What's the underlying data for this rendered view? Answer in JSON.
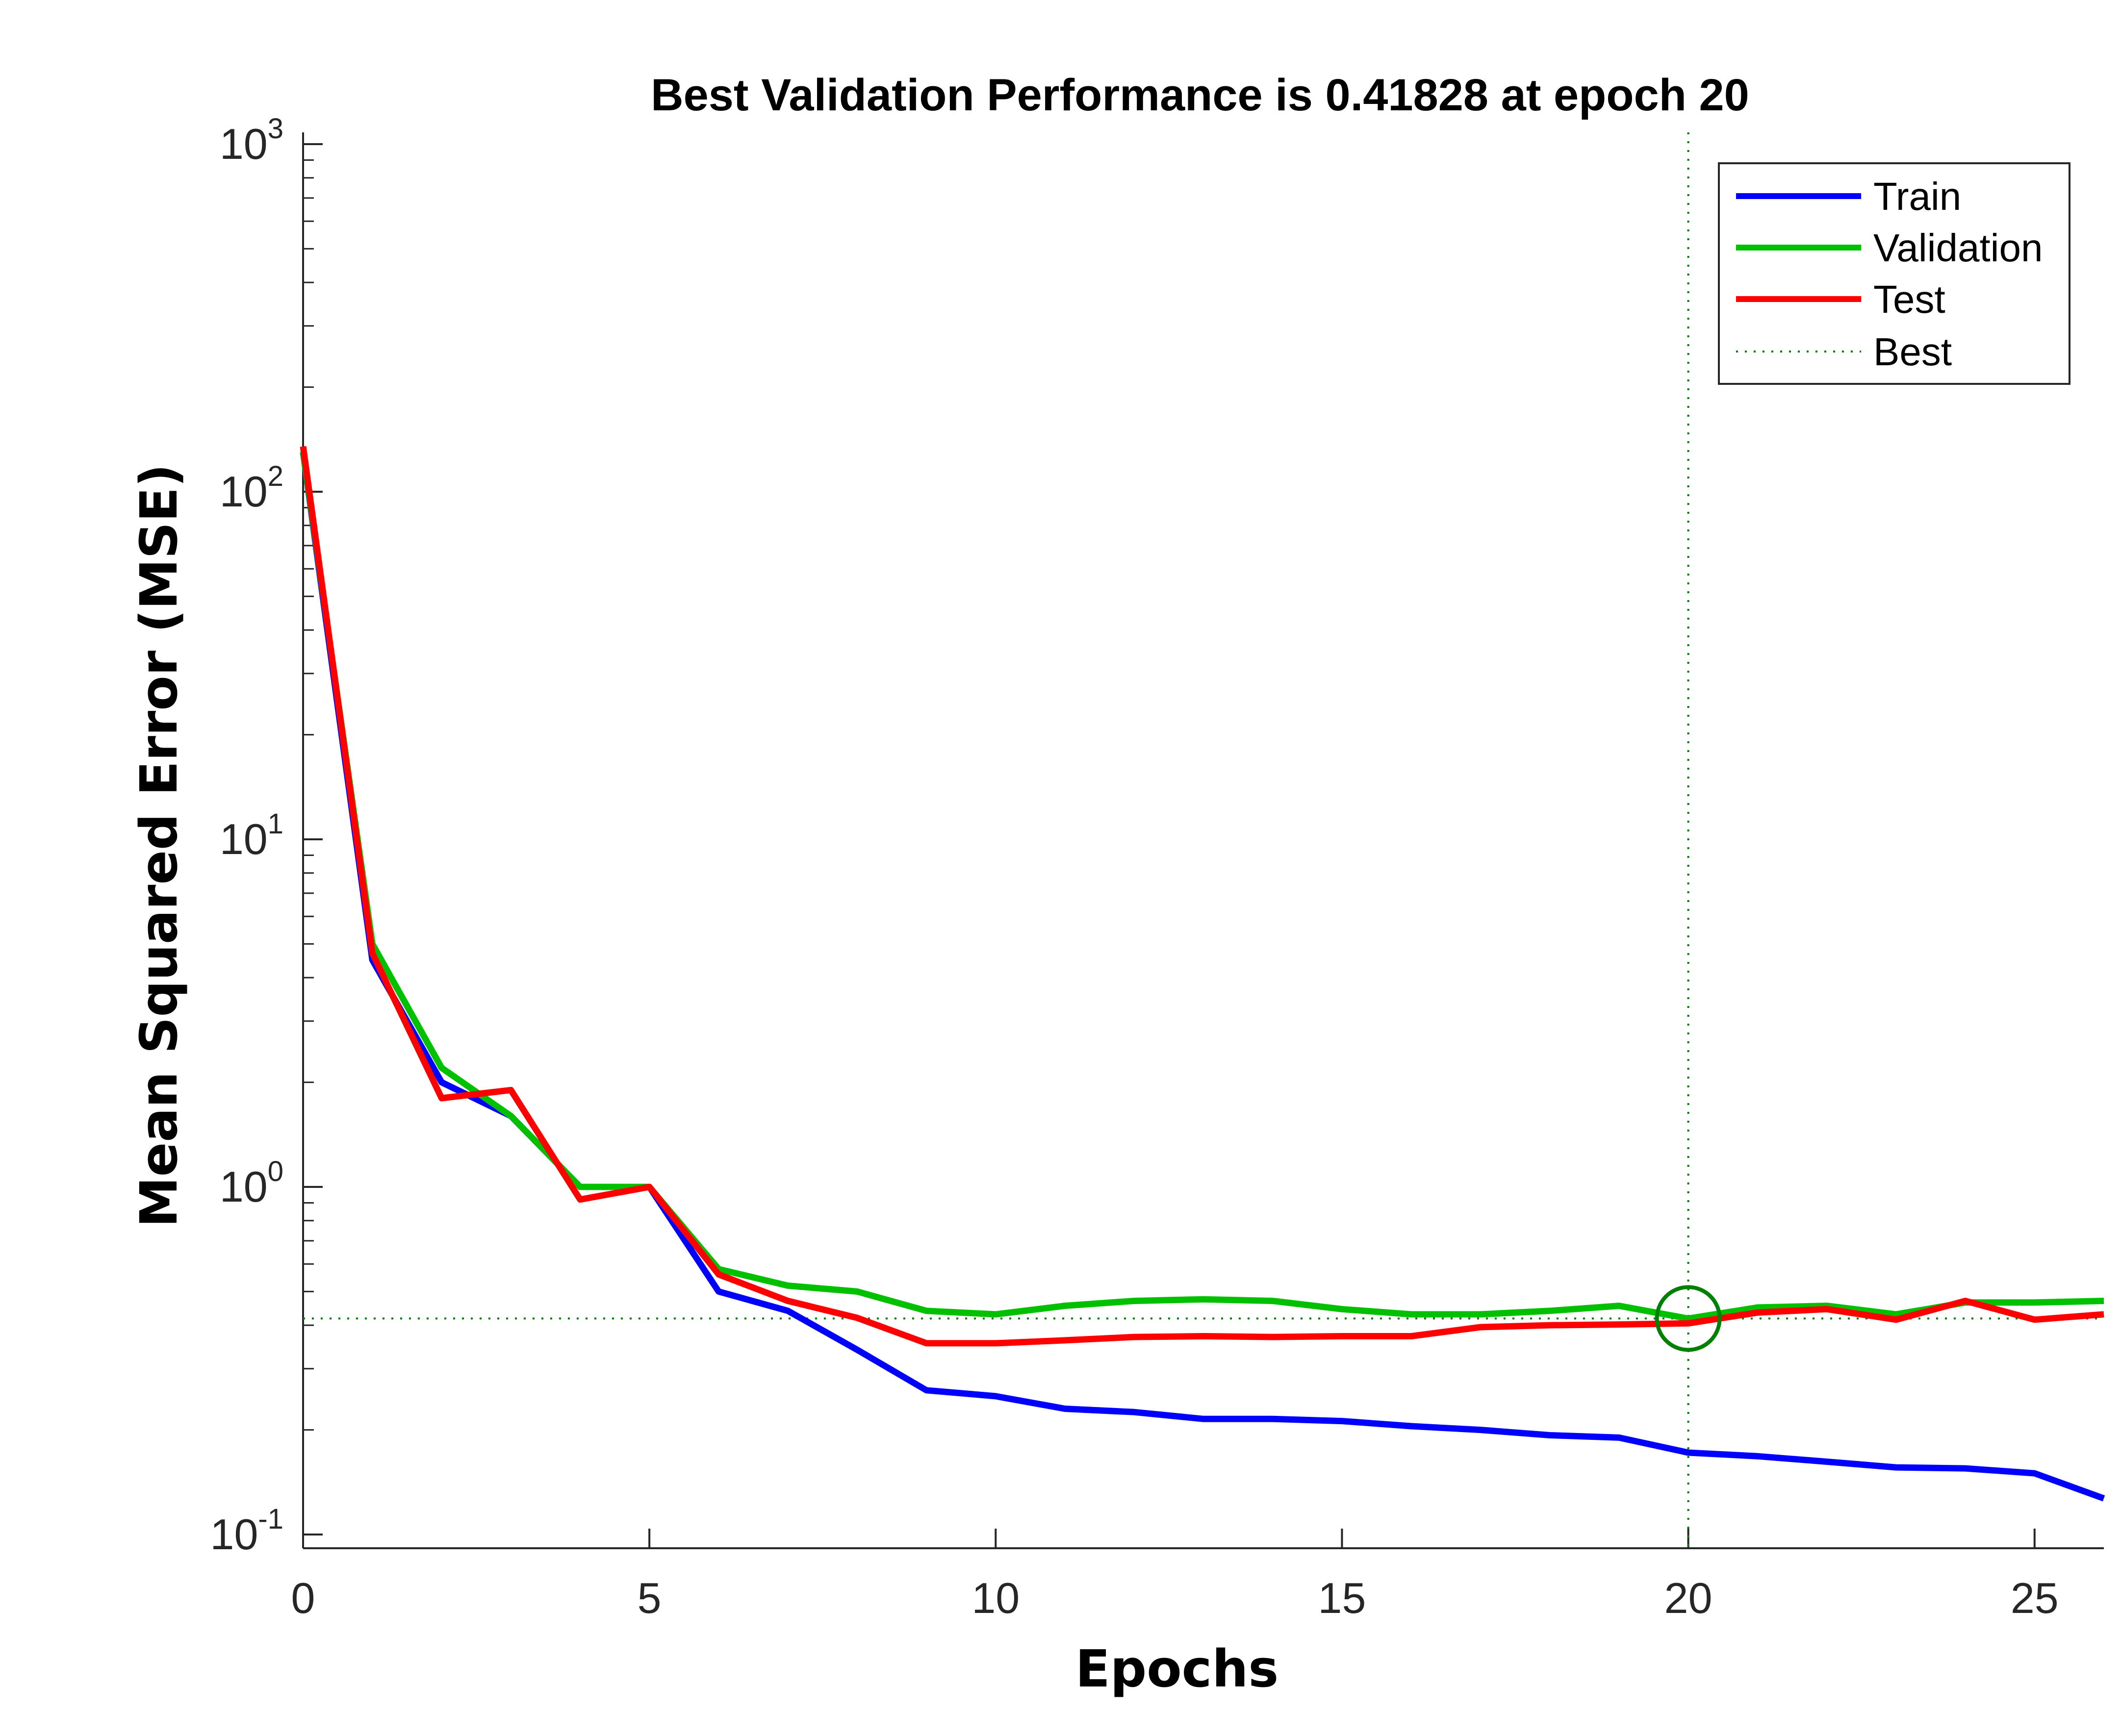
{
  "chart_data": {
    "type": "line",
    "title": "Best Validation Performance is 0.41828 at epoch 20",
    "xlabel": "Epochs",
    "ylabel": "Mean Squared Error (MSE)",
    "xlim": [
      0,
      26
    ],
    "ylim": [
      0.1,
      1000
    ],
    "yscale": "log",
    "x_ticks": [
      "0",
      "5",
      "10",
      "15",
      "20",
      "25"
    ],
    "x_tick_values": [
      0,
      5,
      10,
      15,
      20,
      25
    ],
    "y_ticks": [
      {
        "base": "10",
        "exp": "-1",
        "value": 0.1
      },
      {
        "base": "10",
        "exp": "0",
        "value": 1
      },
      {
        "base": "10",
        "exp": "1",
        "value": 10
      },
      {
        "base": "10",
        "exp": "2",
        "value": 100
      },
      {
        "base": "10",
        "exp": "3",
        "value": 1000
      }
    ],
    "x": [
      0,
      1,
      2,
      3,
      4,
      5,
      6,
      7,
      8,
      9,
      10,
      11,
      12,
      13,
      14,
      15,
      16,
      17,
      18,
      19,
      20,
      21,
      22,
      23,
      24,
      25,
      26
    ],
    "series": [
      {
        "name": "Train",
        "color": "#0000ff",
        "values": [
          130,
          4.5,
          2.0,
          1.6,
          1.0,
          1.0,
          0.5,
          0.44,
          0.34,
          0.26,
          0.25,
          0.23,
          0.225,
          0.215,
          0.215,
          0.212,
          0.205,
          0.2,
          0.193,
          0.19,
          0.172,
          0.168,
          0.162,
          0.156,
          0.155,
          0.15,
          0.127
        ]
      },
      {
        "name": "Validation",
        "color": "#00c000",
        "values": [
          130,
          5.0,
          2.2,
          1.6,
          1.0,
          1.0,
          0.58,
          0.52,
          0.5,
          0.44,
          0.43,
          0.455,
          0.47,
          0.475,
          0.47,
          0.445,
          0.43,
          0.43,
          0.44,
          0.455,
          0.418,
          0.45,
          0.455,
          0.43,
          0.465,
          0.465,
          0.47
        ]
      },
      {
        "name": "Test",
        "color": "#ff0000",
        "values": [
          135,
          4.7,
          1.8,
          1.9,
          0.92,
          1.0,
          0.56,
          0.47,
          0.42,
          0.355,
          0.355,
          0.362,
          0.37,
          0.372,
          0.37,
          0.372,
          0.372,
          0.395,
          0.4,
          0.402,
          0.405,
          0.435,
          0.445,
          0.415,
          0.47,
          0.415,
          0.43
        ]
      }
    ],
    "best": {
      "label": "Best",
      "epoch": 20,
      "value": 0.41828,
      "color": "#008000"
    },
    "legend": [
      "Train",
      "Validation",
      "Test",
      "Best"
    ],
    "legend_position": "top-right"
  }
}
